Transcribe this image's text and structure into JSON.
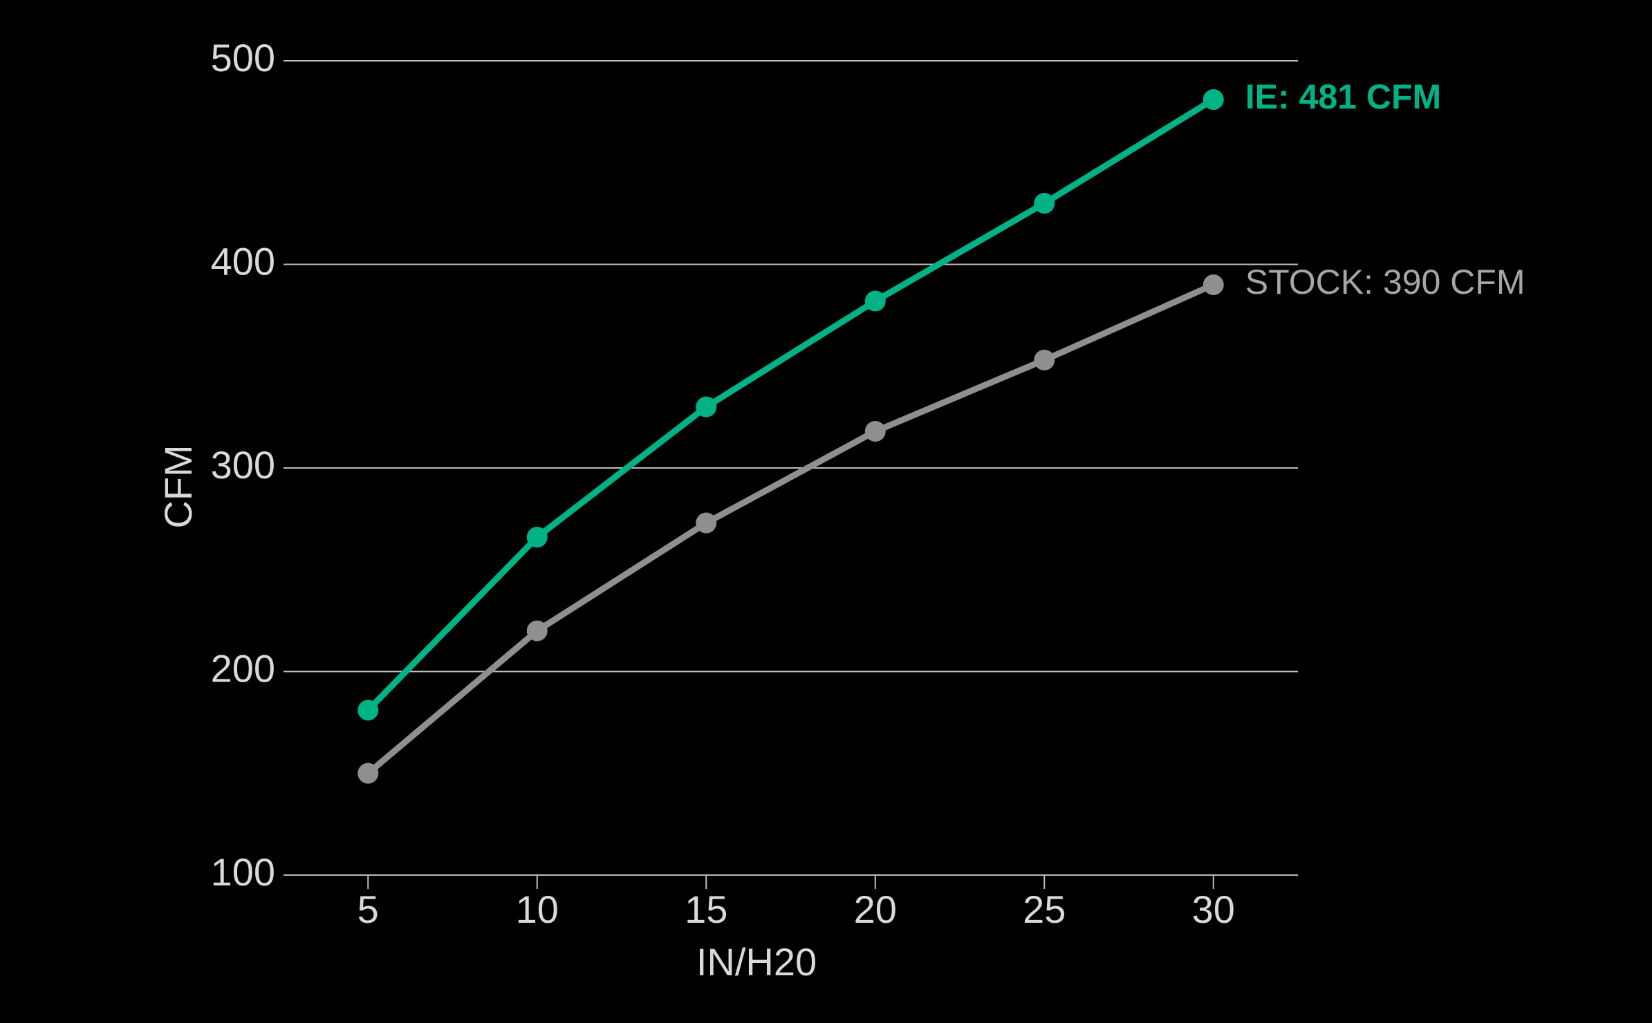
{
  "chart_data": {
    "type": "line",
    "x_label": "IN/H20",
    "y_label": "CFM",
    "x": [
      5,
      10,
      15,
      20,
      25,
      30
    ],
    "series": [
      {
        "name": "IE",
        "color": "#00b386",
        "values": [
          181,
          266,
          330,
          382,
          430,
          481
        ],
        "end_label": "IE: 481 CFM",
        "end_label_color": "#00b386"
      },
      {
        "name": "STOCK",
        "color": "#8f8f8f",
        "values": [
          150,
          220,
          273,
          318,
          353,
          390
        ],
        "end_label": "STOCK: 390 CFM",
        "end_label_color": "#a6a6a6"
      }
    ],
    "xlim": [
      2.5,
      32.5
    ],
    "xticks": [
      5,
      10,
      15,
      20,
      25,
      30
    ],
    "ylim": [
      100,
      500
    ],
    "yticks": [
      100,
      200,
      300,
      400,
      500
    ],
    "grid": true
  }
}
